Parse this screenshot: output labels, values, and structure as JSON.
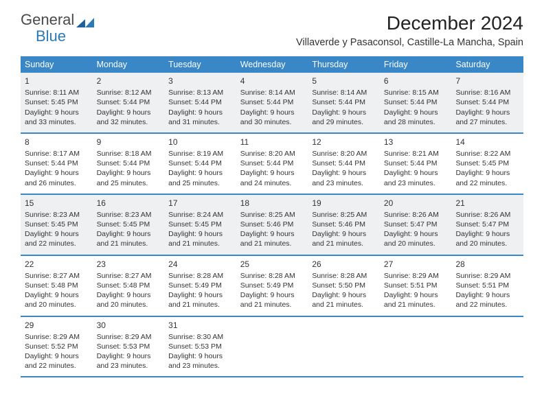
{
  "logo": {
    "line1": "General",
    "line2": "Blue"
  },
  "title": "December 2024",
  "location": "Villaverde y Pasaconsol, Castille-La Mancha, Spain",
  "dow": [
    "Sunday",
    "Monday",
    "Tuesday",
    "Wednesday",
    "Thursday",
    "Friday",
    "Saturday"
  ],
  "colors": {
    "header_bg": "#3a87c8",
    "shade_bg": "#eef0f2",
    "rule": "#3a87c8",
    "logo_blue": "#2a7ab8"
  },
  "days": [
    {
      "n": "1",
      "sr": "Sunrise: 8:11 AM",
      "ss": "Sunset: 5:45 PM",
      "d1": "Daylight: 9 hours",
      "d2": "and 33 minutes."
    },
    {
      "n": "2",
      "sr": "Sunrise: 8:12 AM",
      "ss": "Sunset: 5:44 PM",
      "d1": "Daylight: 9 hours",
      "d2": "and 32 minutes."
    },
    {
      "n": "3",
      "sr": "Sunrise: 8:13 AM",
      "ss": "Sunset: 5:44 PM",
      "d1": "Daylight: 9 hours",
      "d2": "and 31 minutes."
    },
    {
      "n": "4",
      "sr": "Sunrise: 8:14 AM",
      "ss": "Sunset: 5:44 PM",
      "d1": "Daylight: 9 hours",
      "d2": "and 30 minutes."
    },
    {
      "n": "5",
      "sr": "Sunrise: 8:14 AM",
      "ss": "Sunset: 5:44 PM",
      "d1": "Daylight: 9 hours",
      "d2": "and 29 minutes."
    },
    {
      "n": "6",
      "sr": "Sunrise: 8:15 AM",
      "ss": "Sunset: 5:44 PM",
      "d1": "Daylight: 9 hours",
      "d2": "and 28 minutes."
    },
    {
      "n": "7",
      "sr": "Sunrise: 8:16 AM",
      "ss": "Sunset: 5:44 PM",
      "d1": "Daylight: 9 hours",
      "d2": "and 27 minutes."
    },
    {
      "n": "8",
      "sr": "Sunrise: 8:17 AM",
      "ss": "Sunset: 5:44 PM",
      "d1": "Daylight: 9 hours",
      "d2": "and 26 minutes."
    },
    {
      "n": "9",
      "sr": "Sunrise: 8:18 AM",
      "ss": "Sunset: 5:44 PM",
      "d1": "Daylight: 9 hours",
      "d2": "and 25 minutes."
    },
    {
      "n": "10",
      "sr": "Sunrise: 8:19 AM",
      "ss": "Sunset: 5:44 PM",
      "d1": "Daylight: 9 hours",
      "d2": "and 25 minutes."
    },
    {
      "n": "11",
      "sr": "Sunrise: 8:20 AM",
      "ss": "Sunset: 5:44 PM",
      "d1": "Daylight: 9 hours",
      "d2": "and 24 minutes."
    },
    {
      "n": "12",
      "sr": "Sunrise: 8:20 AM",
      "ss": "Sunset: 5:44 PM",
      "d1": "Daylight: 9 hours",
      "d2": "and 23 minutes."
    },
    {
      "n": "13",
      "sr": "Sunrise: 8:21 AM",
      "ss": "Sunset: 5:44 PM",
      "d1": "Daylight: 9 hours",
      "d2": "and 23 minutes."
    },
    {
      "n": "14",
      "sr": "Sunrise: 8:22 AM",
      "ss": "Sunset: 5:45 PM",
      "d1": "Daylight: 9 hours",
      "d2": "and 22 minutes."
    },
    {
      "n": "15",
      "sr": "Sunrise: 8:23 AM",
      "ss": "Sunset: 5:45 PM",
      "d1": "Daylight: 9 hours",
      "d2": "and 22 minutes."
    },
    {
      "n": "16",
      "sr": "Sunrise: 8:23 AM",
      "ss": "Sunset: 5:45 PM",
      "d1": "Daylight: 9 hours",
      "d2": "and 21 minutes."
    },
    {
      "n": "17",
      "sr": "Sunrise: 8:24 AM",
      "ss": "Sunset: 5:45 PM",
      "d1": "Daylight: 9 hours",
      "d2": "and 21 minutes."
    },
    {
      "n": "18",
      "sr": "Sunrise: 8:25 AM",
      "ss": "Sunset: 5:46 PM",
      "d1": "Daylight: 9 hours",
      "d2": "and 21 minutes."
    },
    {
      "n": "19",
      "sr": "Sunrise: 8:25 AM",
      "ss": "Sunset: 5:46 PM",
      "d1": "Daylight: 9 hours",
      "d2": "and 21 minutes."
    },
    {
      "n": "20",
      "sr": "Sunrise: 8:26 AM",
      "ss": "Sunset: 5:47 PM",
      "d1": "Daylight: 9 hours",
      "d2": "and 20 minutes."
    },
    {
      "n": "21",
      "sr": "Sunrise: 8:26 AM",
      "ss": "Sunset: 5:47 PM",
      "d1": "Daylight: 9 hours",
      "d2": "and 20 minutes."
    },
    {
      "n": "22",
      "sr": "Sunrise: 8:27 AM",
      "ss": "Sunset: 5:48 PM",
      "d1": "Daylight: 9 hours",
      "d2": "and 20 minutes."
    },
    {
      "n": "23",
      "sr": "Sunrise: 8:27 AM",
      "ss": "Sunset: 5:48 PM",
      "d1": "Daylight: 9 hours",
      "d2": "and 20 minutes."
    },
    {
      "n": "24",
      "sr": "Sunrise: 8:28 AM",
      "ss": "Sunset: 5:49 PM",
      "d1": "Daylight: 9 hours",
      "d2": "and 21 minutes."
    },
    {
      "n": "25",
      "sr": "Sunrise: 8:28 AM",
      "ss": "Sunset: 5:49 PM",
      "d1": "Daylight: 9 hours",
      "d2": "and 21 minutes."
    },
    {
      "n": "26",
      "sr": "Sunrise: 8:28 AM",
      "ss": "Sunset: 5:50 PM",
      "d1": "Daylight: 9 hours",
      "d2": "and 21 minutes."
    },
    {
      "n": "27",
      "sr": "Sunrise: 8:29 AM",
      "ss": "Sunset: 5:51 PM",
      "d1": "Daylight: 9 hours",
      "d2": "and 21 minutes."
    },
    {
      "n": "28",
      "sr": "Sunrise: 8:29 AM",
      "ss": "Sunset: 5:51 PM",
      "d1": "Daylight: 9 hours",
      "d2": "and 22 minutes."
    },
    {
      "n": "29",
      "sr": "Sunrise: 8:29 AM",
      "ss": "Sunset: 5:52 PM",
      "d1": "Daylight: 9 hours",
      "d2": "and 22 minutes."
    },
    {
      "n": "30",
      "sr": "Sunrise: 8:29 AM",
      "ss": "Sunset: 5:53 PM",
      "d1": "Daylight: 9 hours",
      "d2": "and 23 minutes."
    },
    {
      "n": "31",
      "sr": "Sunrise: 8:30 AM",
      "ss": "Sunset: 5:53 PM",
      "d1": "Daylight: 9 hours",
      "d2": "and 23 minutes."
    }
  ],
  "first_dow": 0,
  "shaded_weeks": [
    0,
    2
  ]
}
